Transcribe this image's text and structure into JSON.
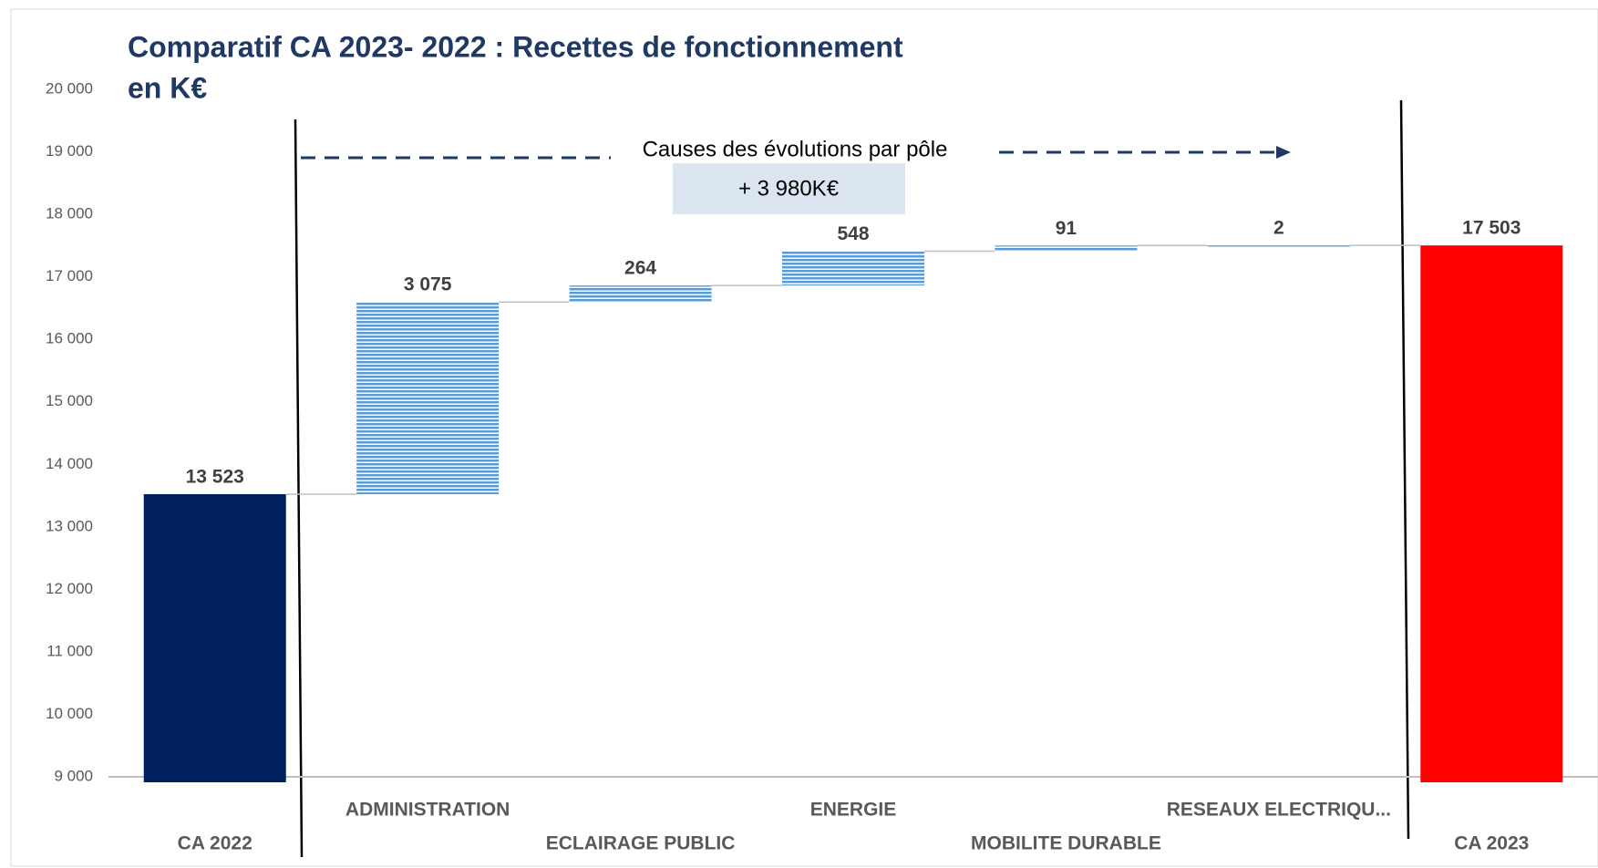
{
  "chart_data": {
    "type": "waterfall",
    "title": [
      "Comparatif CA 2023- 2022 : Recettes de fonctionnement",
      "en K€"
    ],
    "categories": [
      "CA 2022",
      "ADMINISTRATION",
      "ECLAIRAGE PUBLIC",
      "ENERGIE",
      "MOBILITE DURABLE",
      "RESEAUX ELECTRIQU...",
      "CA 2023"
    ],
    "values": [
      13523,
      3075,
      264,
      548,
      91,
      2,
      17503
    ],
    "value_labels": [
      "13 523",
      "3 075",
      "264",
      "548",
      "91",
      "2",
      "17 503"
    ],
    "measure": [
      "total",
      "relative",
      "relative",
      "relative",
      "relative",
      "relative",
      "total"
    ],
    "colors": [
      "#002060",
      "#5b9bd5",
      "#5b9bd5",
      "#5b9bd5",
      "#5b9bd5",
      "#5b9bd5",
      "#ff0000"
    ],
    "ylim": [
      9000,
      20000
    ],
    "yticks": [
      {
        "value": 9000,
        "label": "9 000"
      },
      {
        "value": 10000,
        "label": "10 000"
      },
      {
        "value": 11000,
        "label": "11 000"
      },
      {
        "value": 12000,
        "label": "12 000"
      },
      {
        "value": 13000,
        "label": "13 000"
      },
      {
        "value": 14000,
        "label": "14 000"
      },
      {
        "value": 15000,
        "label": "15 000"
      },
      {
        "value": 16000,
        "label": "16 000"
      },
      {
        "value": 17000,
        "label": "17 000"
      },
      {
        "value": 18000,
        "label": "18 000"
      },
      {
        "value": 19000,
        "label": "19 000"
      },
      {
        "value": 20000,
        "label": "20 000"
      }
    ],
    "grid": false,
    "annotations": [
      "Causes des évolutions par pôle",
      "+ 3 980K€"
    ]
  }
}
